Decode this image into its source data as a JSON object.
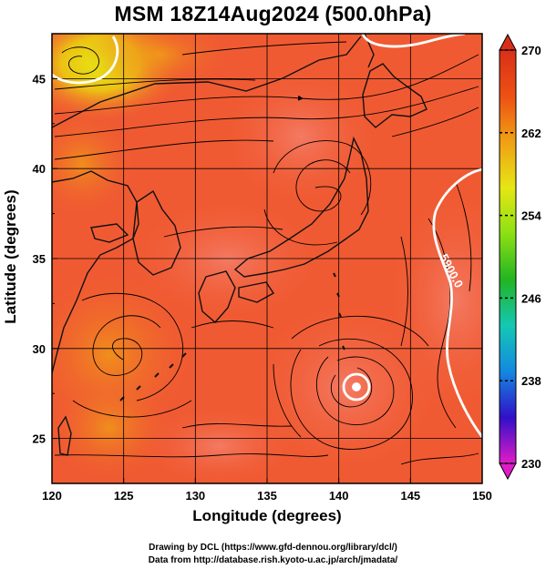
{
  "title": "MSM 18Z14Aug2024 (500.0hPa)",
  "x_axis": {
    "label": "Longitude (degrees)",
    "min": 120,
    "max": 150,
    "ticks": [
      "120",
      "125",
      "130",
      "135",
      "140",
      "145",
      "150"
    ]
  },
  "y_axis": {
    "label": "Latitude  (degrees)",
    "min": 22.5,
    "max": 47.5,
    "ticks": [
      "25",
      "30",
      "35",
      "40",
      "45"
    ]
  },
  "colorbar": {
    "min": 230,
    "max": 270,
    "ticks": [
      "230",
      "238",
      "246",
      "254",
      "262",
      "270"
    ],
    "colors": [
      "#e01cc8",
      "#3010c8",
      "#1488e0",
      "#14c8b4",
      "#22b422",
      "#8ce014",
      "#e6e614",
      "#f0a014",
      "#ee5014",
      "#d83018"
    ]
  },
  "contour": {
    "label": "5900.0",
    "color": "#ffffff"
  },
  "map_colors": {
    "base": "#f05a32",
    "warm": "#f3843a",
    "pale": "#f47c66",
    "cold_corner": "#e6e614",
    "cold_mid": "#f0a014",
    "coast": "#111111",
    "grid": "#000000"
  },
  "features": [
    {
      "name": "typhoon-center",
      "lon": 141.2,
      "lat": 28.6
    },
    {
      "name": "cyclonic-circulation",
      "lon": 138.2,
      "lat": 40.0
    },
    {
      "name": "anticyclonic-circulation",
      "lon": 125.5,
      "lat": 30.0
    },
    {
      "name": "cold-low",
      "lon": 122.5,
      "lat": 46.3
    }
  ],
  "credits": {
    "line1": "Drawing by DCL (https://www.gfd-dennou.org/library/dcl/)",
    "line2": "Data from http://database.rish.kyoto-u.ac.jp/arch/jmadata/"
  }
}
